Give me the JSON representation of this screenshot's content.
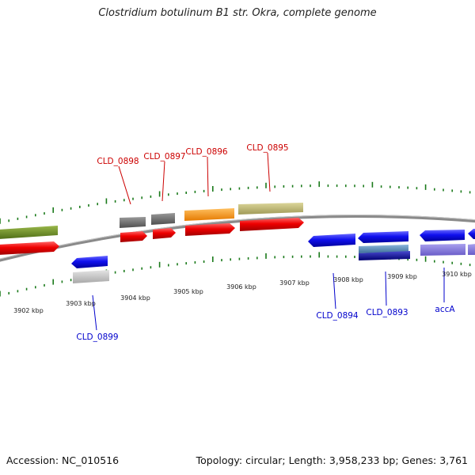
{
  "title": "Clostridium botulinum B1 str. Okra, complete genome",
  "accession": "Accession: NC_010516",
  "topology": "Topology: circular; Length: 3,958,233 bp; Genes: 3,761",
  "colors": {
    "gene_label_forward": "#cc0000",
    "gene_label_reverse": "#0000cc",
    "tick": "#1a7a1a",
    "backbone": "#8a8a8a"
  },
  "kbp_labels": [
    "3902 kbp",
    "3903 kbp",
    "3904 kbp",
    "3905 kbp",
    "3906 kbp",
    "3907 kbp",
    "3908 kbp",
    "3909 kbp",
    "3910 kbp"
  ],
  "gene_labels": [
    {
      "name": "CLD_0898",
      "strand": "forward"
    },
    {
      "name": "CLD_0897",
      "strand": "forward"
    },
    {
      "name": "CLD_0896",
      "strand": "forward"
    },
    {
      "name": "CLD_0895",
      "strand": "forward"
    },
    {
      "name": "CLD_0899",
      "strand": "reverse"
    },
    {
      "name": "CLD_0894",
      "strand": "reverse"
    },
    {
      "name": "CLD_0893",
      "strand": "reverse"
    },
    {
      "name": "accA",
      "strand": "reverse"
    }
  ]
}
